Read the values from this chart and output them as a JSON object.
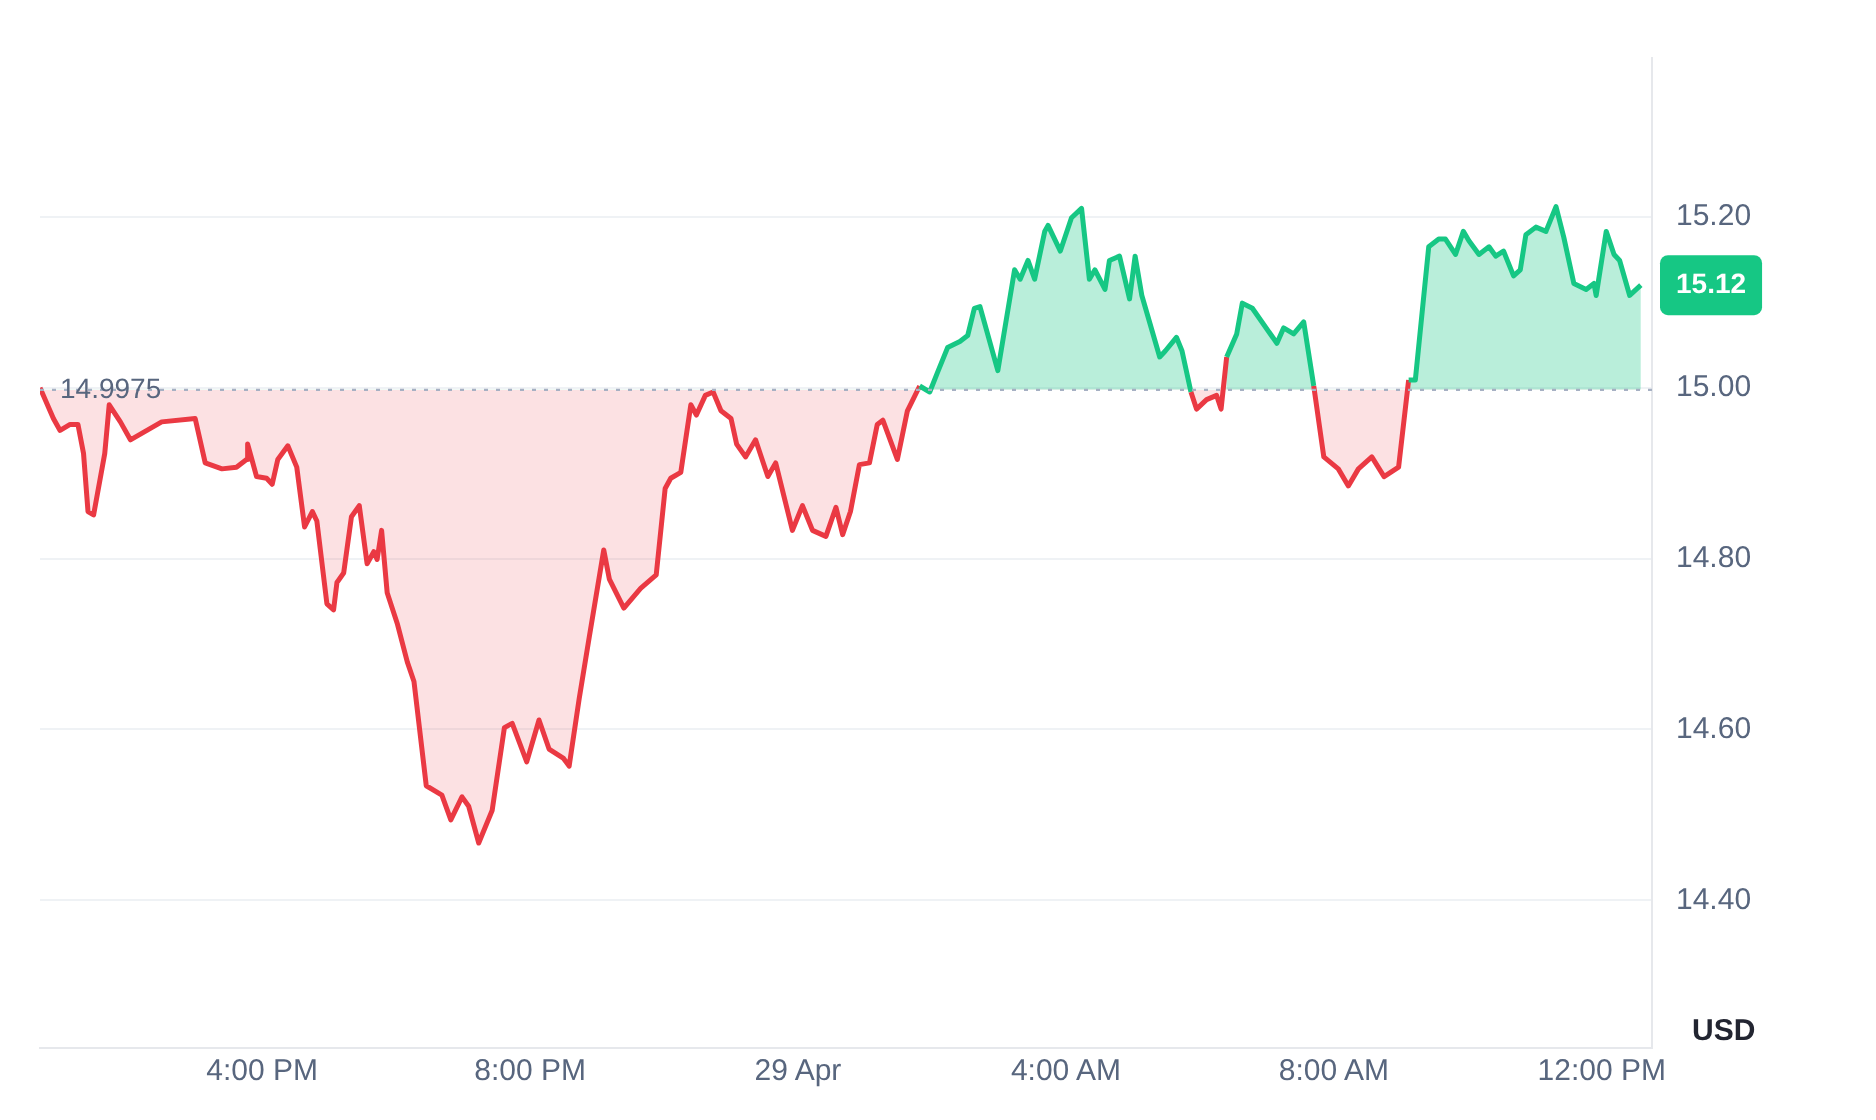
{
  "chart_data": {
    "type": "area",
    "x": [
      "--04-28T12:41",
      "--04-28T12:53",
      "--04-28T12:59",
      "--04-28T13:08",
      "--04-28T13:15",
      "--04-28T13:20",
      "--04-28T13:24",
      "--04-28T13:29",
      "--04-28T13:39",
      "--04-28T13:43",
      "--04-28T13:53",
      "--04-28T14:02",
      "--04-28T14:30",
      "--04-28T15:00",
      "--04-28T15:09",
      "--04-28T15:24",
      "--04-28T15:37",
      "--04-28T15:46",
      "--04-28T15:47",
      "--04-28T15:55",
      "--04-28T16:04",
      "--04-28T16:09",
      "--04-28T16:14",
      "--04-28T16:23",
      "--04-28T16:31",
      "--04-28T16:38",
      "--04-28T16:45",
      "--04-28T16:49",
      "--04-28T16:58",
      "--04-28T17:04",
      "--04-28T17:07",
      "--04-28T17:13",
      "--04-28T17:20",
      "--04-28T17:27",
      "--04-28T17:34",
      "--04-28T17:40",
      "--04-28T17:43",
      "--04-28T17:47",
      "--04-28T17:52",
      "--04-28T18:01",
      "--04-28T18:10",
      "--04-28T18:16",
      "--04-28T18:27",
      "--04-28T18:41",
      "--04-28T18:49",
      "--04-28T18:59",
      "--04-28T19:05",
      "--04-28T19:14",
      "--04-28T19:26",
      "--04-28T19:37",
      "--04-28T19:44",
      "--04-28T19:57",
      "--04-28T20:08",
      "--04-28T20:17",
      "--04-28T20:30",
      "--04-28T20:35",
      "--04-28T20:44",
      "--04-28T20:53",
      "--04-28T21:06",
      "--04-28T21:11",
      "--04-28T21:24",
      "--04-28T21:39",
      "--04-28T21:53",
      "--04-28T22:01",
      "--04-28T22:06",
      "--04-28T22:15",
      "--04-28T22:24",
      "--04-28T22:29",
      "--04-28T22:37",
      "--04-28T22:44",
      "--04-28T22:51",
      "--04-28T23:00",
      "--04-28T23:05",
      "--04-28T23:13",
      "--04-28T23:22",
      "--04-28T23:33",
      "--04-28T23:40",
      "--04-28T23:55",
      "--04-29T00:04",
      "--04-29T00:13",
      "--04-29T00:25",
      "--04-29T00:34",
      "--04-29T00:40",
      "--04-29T00:47",
      "--04-29T00:55",
      "--04-29T01:04",
      "--04-29T01:11",
      "--04-29T01:16",
      "--04-29T01:29",
      "--04-29T01:38",
      "--04-29T01:49",
      "--04-29T01:58",
      "--04-29T02:05",
      "--04-29T02:14",
      "--04-29T02:25",
      "--04-29T02:32",
      "--04-29T02:38",
      "--04-29T02:43",
      "--04-29T02:59",
      "--04-29T03:14",
      "--04-29T03:19",
      "--04-29T03:26",
      "--04-29T03:32",
      "--04-29T03:41",
      "--04-29T03:44",
      "--04-29T03:55",
      "--04-29T04:05",
      "--04-29T04:14",
      "--04-29T04:21",
      "--04-29T04:26",
      "--04-29T04:35",
      "--04-29T04:39",
      "--04-29T04:48",
      "--04-29T04:57",
      "--04-29T05:02",
      "--04-29T05:08",
      "--04-29T05:24",
      "--04-29T05:29",
      "--04-29T05:39",
      "--04-29T05:44",
      "--04-29T05:52",
      "--04-29T05:57",
      "--04-29T06:06",
      "--04-29T06:15",
      "--04-29T06:19",
      "--04-29T06:24",
      "--04-29T06:33",
      "--04-29T06:38",
      "--04-29T06:47",
      "--04-29T07:09",
      "--04-29T07:15",
      "--04-29T07:24",
      "--04-29T07:33",
      "--04-29T07:42",
      "--04-29T07:51",
      "--04-29T08:04",
      "--04-29T08:13",
      "--04-29T08:22",
      "--04-29T08:34",
      "--04-29T08:45",
      "--04-29T08:58",
      "--04-29T09:07",
      "--04-29T09:13",
      "--04-29T09:25",
      "--04-29T09:34",
      "--04-29T09:40",
      "--04-29T09:49",
      "--04-29T09:56",
      "--04-29T10:01",
      "--04-29T10:10",
      "--04-29T10:19",
      "--04-29T10:25",
      "--04-29T10:32",
      "--04-29T10:41",
      "--04-29T10:47",
      "--04-29T10:52",
      "--04-29T11:01",
      "--04-29T11:10",
      "--04-29T11:19",
      "--04-29T11:26",
      "--04-29T11:35",
      "--04-29T11:46",
      "--04-29T11:53",
      "--04-29T11:55",
      "--04-29T12:04",
      "--04-29T12:11",
      "--04-29T12:16",
      "--04-29T12:25",
      "--04-29T12:35"
    ],
    "series": [
      {
        "values": [
          15.0,
          14.964,
          14.95,
          14.957,
          14.957,
          14.923,
          14.855,
          14.851,
          14.923,
          14.98,
          14.96,
          14.939,
          14.96,
          14.964,
          14.912,
          14.905,
          14.907,
          14.916,
          14.934,
          14.896,
          14.894,
          14.887,
          14.916,
          14.932,
          14.907,
          14.837,
          14.855,
          14.844,
          14.747,
          14.74,
          14.772,
          14.783,
          14.849,
          14.862,
          14.794,
          14.808,
          14.799,
          14.833,
          14.76,
          14.724,
          14.679,
          14.656,
          14.534,
          14.523,
          14.494,
          14.521,
          14.51,
          14.467,
          14.505,
          14.602,
          14.607,
          14.562,
          14.611,
          14.577,
          14.566,
          14.557,
          14.636,
          14.708,
          14.81,
          14.776,
          14.742,
          14.765,
          14.781,
          14.882,
          14.894,
          14.901,
          14.98,
          14.968,
          14.991,
          14.995,
          14.973,
          14.964,
          14.934,
          14.919,
          14.939,
          14.896,
          14.912,
          14.833,
          14.862,
          14.833,
          14.826,
          14.86,
          14.828,
          14.855,
          14.91,
          14.912,
          14.957,
          14.962,
          14.916,
          14.973,
          15.002,
          14.995,
          15.018,
          15.047,
          15.054,
          15.061,
          15.093,
          15.095,
          15.02,
          15.138,
          15.127,
          15.149,
          15.127,
          15.183,
          15.19,
          15.16,
          15.199,
          15.21,
          15.127,
          15.138,
          15.115,
          15.149,
          15.154,
          15.104,
          15.154,
          15.108,
          15.036,
          15.043,
          15.059,
          15.043,
          14.995,
          14.975,
          14.986,
          14.991,
          14.975,
          15.036,
          15.063,
          15.099,
          15.093,
          15.052,
          15.07,
          15.063,
          15.077,
          15.002,
          14.919,
          14.905,
          14.885,
          14.905,
          14.919,
          14.896,
          14.907,
          15.009,
          15.009,
          15.165,
          15.174,
          15.174,
          15.156,
          15.183,
          15.172,
          15.156,
          15.165,
          15.154,
          15.16,
          15.131,
          15.138,
          15.179,
          15.188,
          15.183,
          15.212,
          15.176,
          15.122,
          15.115,
          15.122,
          15.108,
          15.183,
          15.156,
          15.149,
          15.108,
          15.12
        ],
        "colors": [
          "#ea3943",
          "#ea3943",
          "#ea3943",
          "#ea3943",
          "#ea3943",
          "#ea3943",
          "#ea3943",
          "#ea3943",
          "#ea3943",
          "#ea3943",
          "#ea3943",
          "#ea3943",
          "#ea3943",
          "#ea3943",
          "#ea3943",
          "#ea3943",
          "#ea3943",
          "#ea3943",
          "#ea3943",
          "#ea3943",
          "#ea3943",
          "#ea3943",
          "#ea3943",
          "#ea3943",
          "#ea3943",
          "#ea3943",
          "#ea3943",
          "#ea3943",
          "#ea3943",
          "#ea3943",
          "#ea3943",
          "#ea3943",
          "#ea3943",
          "#ea3943",
          "#ea3943",
          "#ea3943",
          "#ea3943",
          "#ea3943",
          "#ea3943",
          "#ea3943",
          "#ea3943",
          "#ea3943",
          "#ea3943",
          "#ea3943",
          "#ea3943",
          "#ea3943",
          "#ea3943",
          "#ea3943",
          "#ea3943",
          "#ea3943",
          "#ea3943",
          "#ea3943",
          "#ea3943",
          "#ea3943",
          "#ea3943",
          "#ea3943",
          "#ea3943",
          "#ea3943",
          "#ea3943",
          "#ea3943",
          "#ea3943",
          "#ea3943",
          "#ea3943",
          "#ea3943",
          "#ea3943",
          "#ea3943",
          "#ea3943",
          "#ea3943",
          "#ea3943",
          "#ea3943",
          "#ea3943",
          "#ea3943",
          "#ea3943",
          "#ea3943",
          "#ea3943",
          "#ea3943",
          "#ea3943",
          "#ea3943",
          "#ea3943",
          "#ea3943",
          "#ea3943",
          "#ea3943",
          "#ea3943",
          "#ea3943",
          "#ea3943",
          "#ea3943",
          "#ea3943",
          "#ea3943",
          "#ea3943",
          "#ea3943",
          "#16c784",
          "#16c784",
          "#16c784",
          "#16c784",
          "#16c784",
          "#16c784",
          "#16c784",
          "#16c784",
          "#16c784",
          "#16c784",
          "#16c784",
          "#16c784",
          "#16c784",
          "#16c784",
          "#16c784",
          "#16c784",
          "#16c784",
          "#16c784",
          "#16c784",
          "#16c784",
          "#16c784",
          "#16c784",
          "#16c784",
          "#16c784",
          "#16c784",
          "#16c784",
          "#16c784",
          "#16c784",
          "#16c784",
          "#16c784",
          "#ea3943",
          "#ea3943",
          "#ea3943",
          "#ea3943",
          "#ea3943",
          "#16c784",
          "#16c784",
          "#16c784",
          "#16c784",
          "#16c784",
          "#16c784",
          "#16c784",
          "#16c784",
          "#ea3943",
          "#ea3943",
          "#ea3943",
          "#ea3943",
          "#ea3943",
          "#ea3943",
          "#ea3943",
          "#ea3943",
          "#16c784",
          "#16c784",
          "#16c784",
          "#16c784",
          "#16c784",
          "#16c784",
          "#16c784",
          "#16c784",
          "#16c784",
          "#16c784",
          "#16c784",
          "#16c784",
          "#16c784",
          "#16c784",
          "#16c784",
          "#16c784",
          "#16c784",
          "#16c784",
          "#16c784",
          "#16c784",
          "#16c784",
          "#16c784",
          "#16c784",
          "#16c784",
          "#16c784",
          "#16c784",
          "#16c784",
          "#16c784"
        ]
      }
    ],
    "xlim": [
      "--04-28T12:41",
      "--04-29T12:45"
    ],
    "xticks": [
      {
        "value": "--04-28T16:00",
        "label": "4:00 PM"
      },
      {
        "value": "--04-28T20:00",
        "label": "8:00 PM"
      },
      {
        "value": "--04-29T00:00",
        "label": "29 Apr"
      },
      {
        "value": "--04-29T04:00",
        "label": "4:00 AM"
      },
      {
        "value": "--04-29T08:00",
        "label": "8:00 AM"
      },
      {
        "value": "--04-29T12:00",
        "label": "12:00 PM"
      }
    ],
    "ylim": [
      14.227,
      15.386
    ],
    "yticks": [
      {
        "value": 14.4,
        "label": "14.40"
      },
      {
        "value": 14.6,
        "label": "14.60"
      },
      {
        "value": 14.8,
        "label": "14.80"
      },
      {
        "value": 15.0,
        "label": "15.00"
      },
      {
        "value": 15.2,
        "label": "15.20"
      }
    ],
    "ylabel": "USD",
    "grid": "y",
    "legend": false,
    "marker": "none",
    "ref_lines": [
      {
        "axis": "y",
        "value": 14.9975,
        "label": "14.9975",
        "color": "#a6b0c3",
        "line_style": "dotted"
      }
    ],
    "annotations": [
      {
        "text": "15.12",
        "x": "--04-29T12:35",
        "y": 15.12
      }
    ]
  }
}
